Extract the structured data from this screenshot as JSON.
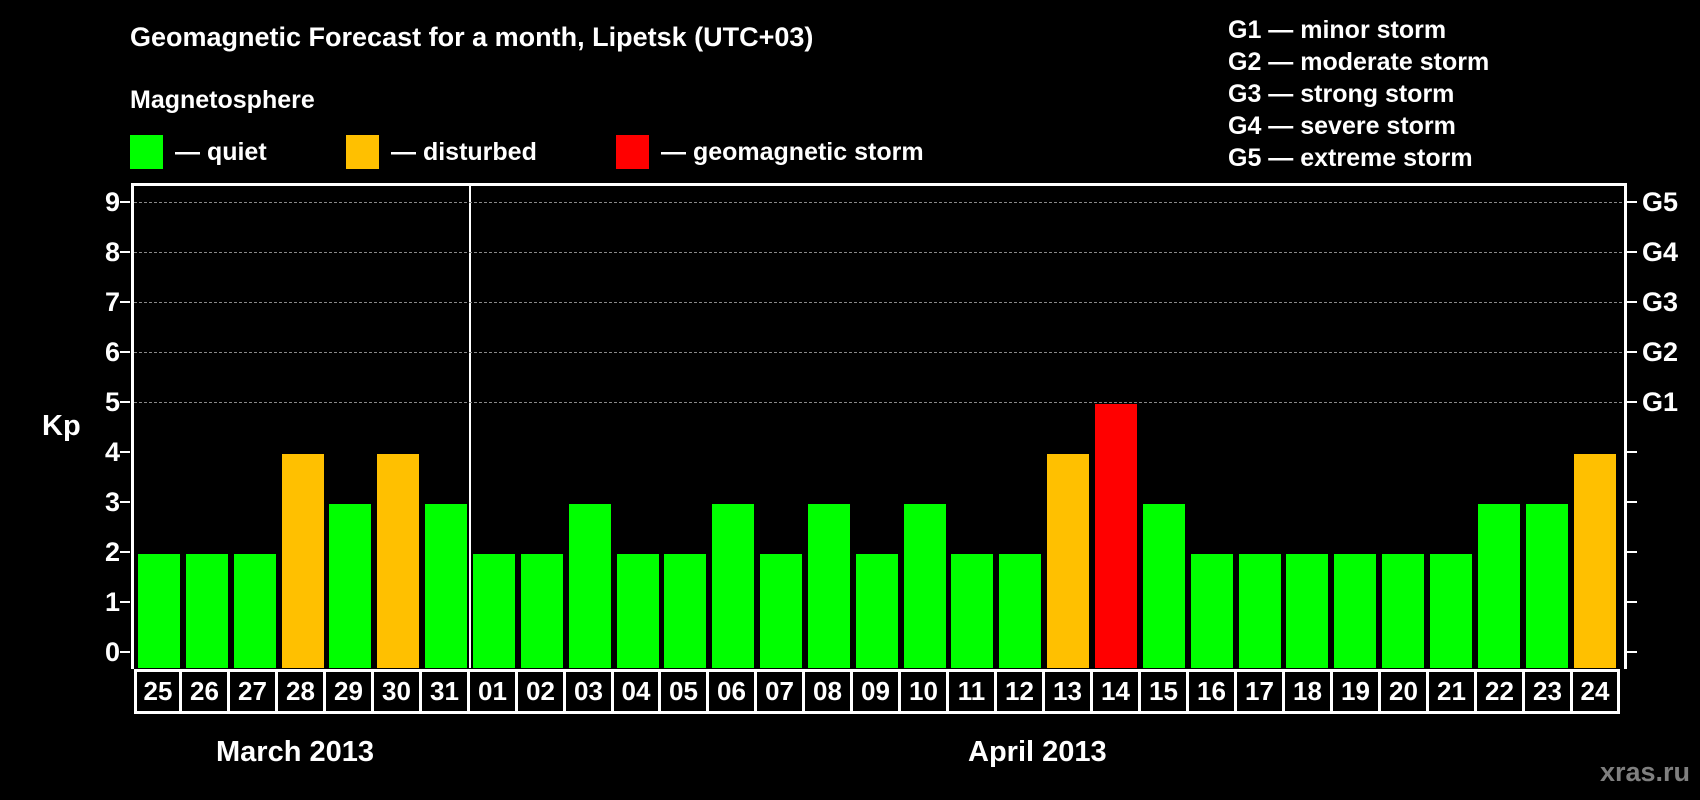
{
  "title": "Geomagnetic Forecast for a month, Lipetsk (UTC+03)",
  "subtitle": "Magnetosphere",
  "legend": [
    {
      "label": "— quiet",
      "color": "#00ff00"
    },
    {
      "label": "— disturbed",
      "color": "#ffc000"
    },
    {
      "label": "— geomagnetic storm",
      "color": "#ff0000"
    }
  ],
  "storm_scale": [
    "G1 — minor storm",
    "G2 — moderate storm",
    "G3 — strong storm",
    "G4 — severe storm",
    "G5 — extreme storm"
  ],
  "y_axis_label": "Kp",
  "y_ticks": [
    "0",
    "1",
    "2",
    "3",
    "4",
    "5",
    "6",
    "7",
    "8",
    "9"
  ],
  "right_ticks": {
    "5": "G1",
    "6": "G2",
    "7": "G3",
    "8": "G4",
    "9": "G5"
  },
  "months": [
    "March 2013",
    "April 2013"
  ],
  "watermark": "xras.ru",
  "colors": {
    "quiet": "#00ff00",
    "disturbed": "#ffc000",
    "storm": "#ff0000",
    "background": "#000000",
    "grid": "#888888"
  },
  "chart_data": {
    "type": "bar",
    "title": "Geomagnetic Forecast for a month, Lipetsk (UTC+03)",
    "xlabel": "",
    "ylabel": "Kp",
    "ylim": [
      0,
      9
    ],
    "grid": "dashed horizontal at 5,6,7,8,9",
    "legend_position": "top",
    "categories": [
      "25",
      "26",
      "27",
      "28",
      "29",
      "30",
      "31",
      "01",
      "02",
      "03",
      "04",
      "05",
      "06",
      "07",
      "08",
      "09",
      "10",
      "11",
      "12",
      "13",
      "14",
      "15",
      "16",
      "17",
      "18",
      "19",
      "20",
      "21",
      "22",
      "23",
      "24"
    ],
    "category_groups": [
      {
        "label": "March 2013",
        "from": "25",
        "to": "31"
      },
      {
        "label": "April 2013",
        "from": "01",
        "to": "24"
      }
    ],
    "values": [
      2,
      2,
      2,
      4,
      3,
      4,
      3,
      2,
      2,
      3,
      2,
      2,
      3,
      2,
      3,
      2,
      3,
      2,
      2,
      4,
      5,
      3,
      2,
      2,
      2,
      2,
      2,
      2,
      3,
      3,
      4
    ],
    "status": [
      "quiet",
      "quiet",
      "quiet",
      "disturbed",
      "quiet",
      "disturbed",
      "quiet",
      "quiet",
      "quiet",
      "quiet",
      "quiet",
      "quiet",
      "quiet",
      "quiet",
      "quiet",
      "quiet",
      "quiet",
      "quiet",
      "quiet",
      "disturbed",
      "storm",
      "quiet",
      "quiet",
      "quiet",
      "quiet",
      "quiet",
      "quiet",
      "quiet",
      "quiet",
      "quiet",
      "disturbed"
    ],
    "secondary_axis": {
      "5": "G1",
      "6": "G2",
      "7": "G3",
      "8": "G4",
      "9": "G5"
    }
  }
}
